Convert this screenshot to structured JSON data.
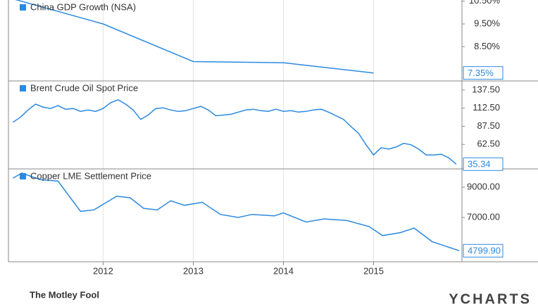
{
  "chart_data": [
    {
      "type": "line",
      "xlim": [
        2010.95,
        2015.98
      ],
      "ylim": [
        7.0,
        10.55
      ],
      "yticks": [
        {
          "value": 10.5,
          "label": "10.50%"
        },
        {
          "value": 9.5,
          "label": "9.50%"
        },
        {
          "value": 8.5,
          "label": "8.50%"
        }
      ],
      "series": [
        {
          "name": "China GDP Growth (NSA)",
          "color": "#2b8ae0",
          "last_label": "7.35%",
          "x": [
            2011.0,
            2012.0,
            2013.0,
            2014.0,
            2015.0
          ],
          "values": [
            10.6,
            9.5,
            7.85,
            7.8,
            7.35
          ]
        }
      ]
    },
    {
      "type": "line",
      "xlim": [
        2010.95,
        2015.98
      ],
      "ylim": [
        28.8,
        150
      ],
      "yticks": [
        {
          "value": 137.5,
          "label": "137.50"
        },
        {
          "value": 112.5,
          "label": "112.50"
        },
        {
          "value": 87.5,
          "label": "87.50"
        },
        {
          "value": 62.5,
          "label": "62.50"
        }
      ],
      "series": [
        {
          "name": "Brent Crude Oil Spot Price",
          "color": "#2b8ae0",
          "x": [
            2011.0,
            2011.083,
            2011.167,
            2011.25,
            2011.333,
            2011.417,
            2011.5,
            2011.583,
            2011.667,
            2011.75,
            2011.833,
            2011.917,
            2012.0,
            2012.083,
            2012.167,
            2012.25,
            2012.333,
            2012.417,
            2012.5,
            2012.583,
            2012.667,
            2012.75,
            2012.833,
            2012.917,
            2013.0,
            2013.083,
            2013.167,
            2013.25,
            2013.333,
            2013.417,
            2013.5,
            2013.583,
            2013.667,
            2013.75,
            2013.833,
            2013.917,
            2014.0,
            2014.083,
            2014.167,
            2014.25,
            2014.333,
            2014.417,
            2014.5,
            2014.583,
            2014.667,
            2014.75,
            2014.833,
            2014.917,
            2015.0,
            2015.083,
            2015.167,
            2015.25,
            2015.333,
            2015.417,
            2015.5,
            2015.583,
            2015.667,
            2015.75,
            2015.833,
            2015.917
          ],
          "values": [
            93,
            100,
            110,
            118,
            114,
            112,
            116,
            111,
            112,
            108,
            110,
            108,
            112,
            120,
            124,
            118,
            110,
            97,
            103,
            112,
            113,
            110,
            108,
            109,
            112,
            115,
            110,
            102,
            103,
            104,
            107,
            110,
            111,
            109,
            108,
            111,
            108,
            109,
            107,
            108,
            110,
            111,
            107,
            102,
            97,
            87,
            78,
            62,
            48,
            58,
            56,
            59,
            64,
            62,
            56,
            48,
            48,
            49,
            44,
            35.34
          ]
        }
      ]
    },
    {
      "type": "line",
      "xlim": [
        2010.95,
        2015.98
      ],
      "ylim": [
        4070,
        10209
      ],
      "yticks": [
        {
          "value": 9000,
          "label": "9000.00"
        },
        {
          "value": 7000,
          "label": "7000.00"
        }
      ],
      "xticks": [
        2012,
        2013,
        2014,
        2015
      ],
      "series": [
        {
          "name": "Copper LME Settlement Price",
          "color": "#2b8ae0",
          "last_label": "4799.90",
          "x": [
            2011.0,
            2011.1,
            2011.3,
            2011.5,
            2011.75,
            2011.9,
            2012.15,
            2012.3,
            2012.45,
            2012.6,
            2012.75,
            2012.9,
            2013.1,
            2013.3,
            2013.5,
            2013.65,
            2013.9,
            2014.0,
            2014.25,
            2014.45,
            2014.7,
            2014.95,
            2015.1,
            2015.3,
            2015.45,
            2015.65,
            2015.8,
            2015.95
          ],
          "values": [
            9600,
            9930,
            9500,
            9400,
            7400,
            7500,
            8400,
            8300,
            7600,
            7500,
            8100,
            7800,
            8000,
            7200,
            7000,
            7200,
            7100,
            7300,
            6700,
            6900,
            6800,
            6400,
            5800,
            6000,
            6300,
            5400,
            5100,
            4799.9
          ]
        }
      ]
    }
  ],
  "footer": {
    "brand": "The Motley Fool",
    "source": "YCHARTS"
  }
}
